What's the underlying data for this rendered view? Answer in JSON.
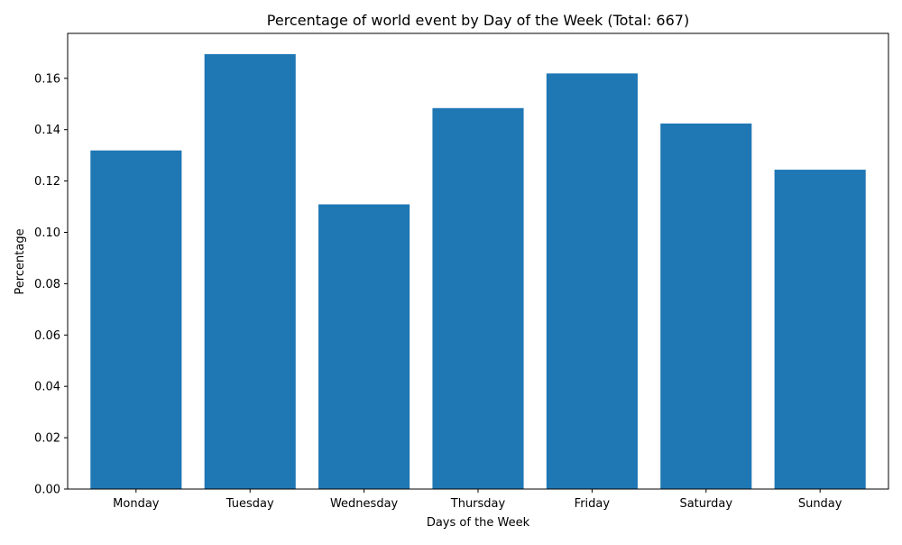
{
  "chart_data": {
    "type": "bar",
    "title": "Percentage of world event by Day of the Week (Total: 667)",
    "xlabel": "Days of the Week",
    "ylabel": "Percentage",
    "categories": [
      "Monday",
      "Tuesday",
      "Wednesday",
      "Thursday",
      "Friday",
      "Saturday",
      "Sunday"
    ],
    "values": [
      0.1319,
      0.1694,
      0.1109,
      0.1484,
      0.1619,
      0.1424,
      0.1244
    ],
    "ylim": [
      0,
      0.1775
    ],
    "yticks": [
      0.0,
      0.02,
      0.04,
      0.06,
      0.08,
      0.1,
      0.12,
      0.14,
      0.16
    ],
    "ytick_labels": [
      "0.00",
      "0.02",
      "0.04",
      "0.06",
      "0.08",
      "0.10",
      "0.12",
      "0.14",
      "0.16"
    ],
    "bar_color": "#1f77b4",
    "grid": false,
    "legend": "none"
  }
}
